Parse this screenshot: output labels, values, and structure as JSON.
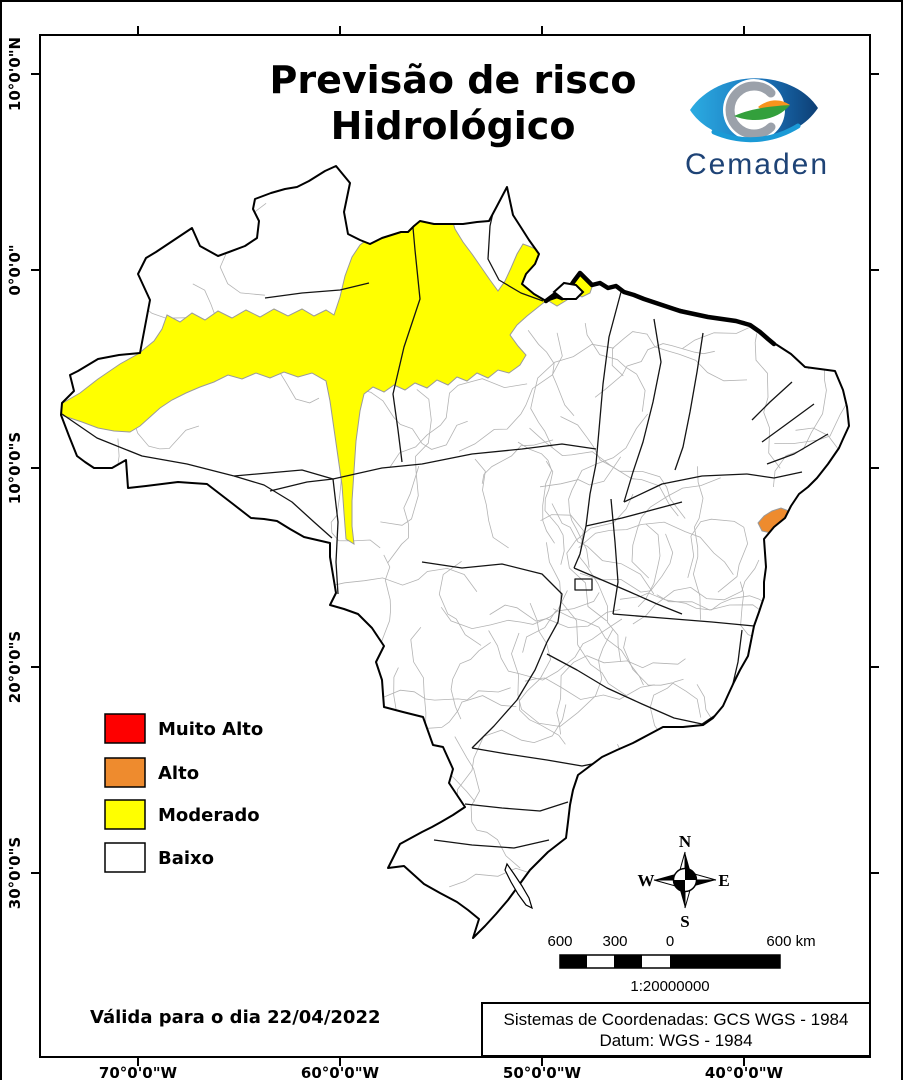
{
  "title": {
    "line1": "Previsão de risco",
    "line2": "Hidrológico"
  },
  "logo": {
    "text": "Cemaden"
  },
  "legend": {
    "items": [
      {
        "label": "Muito Alto",
        "color": "#fe0000"
      },
      {
        "label": "Alto",
        "color": "#ee8b2e"
      },
      {
        "label": "Moderado",
        "color": "#ffff00"
      },
      {
        "label": "Baixo",
        "color": "#ffffff"
      }
    ]
  },
  "compass": {
    "north": "N",
    "east": "E",
    "south": "S",
    "west": "W"
  },
  "scale_bar": {
    "labels": [
      "600",
      "300",
      "0",
      "600 km"
    ],
    "ratio": "1:20000000"
  },
  "validity": "Válida para o dia 22/04/2022",
  "coordinate_system": {
    "line1": "Sistemas de Coordenadas: GCS WGS - 1984",
    "line2": "Datum: WGS - 1984"
  },
  "axes": {
    "lat": [
      "10°0'0\"N",
      "0°0'0\"",
      "10°0'0\"S",
      "20°0'0\"S",
      "30°0'0\"S"
    ],
    "lon": [
      "70°0'0\"W",
      "60°0'0\"W",
      "50°0'0\"W",
      "40°0'0\"W"
    ]
  }
}
